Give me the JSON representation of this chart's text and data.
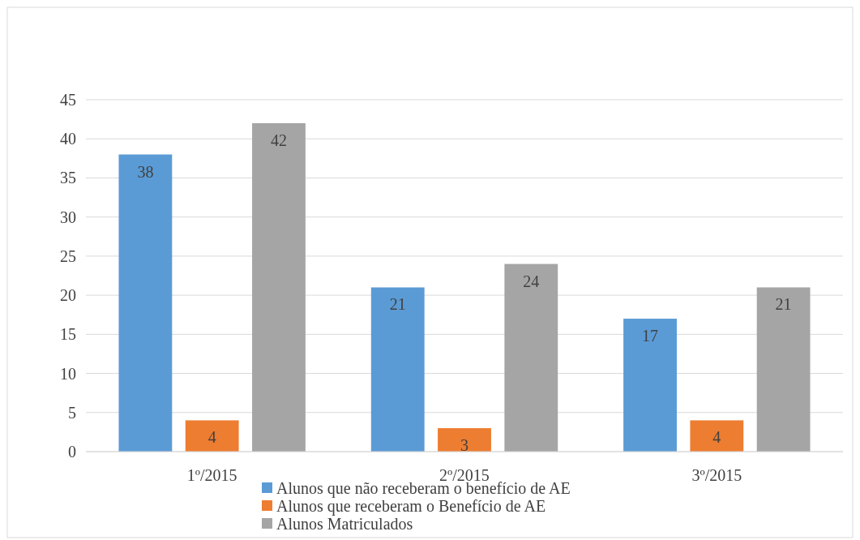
{
  "chart_data": {
    "type": "bar",
    "categories": [
      "1º/2015",
      "2º/2015",
      "3º/2015"
    ],
    "series": [
      {
        "name": "Alunos que não receberam o benefício de AE",
        "color": "#5b9bd5",
        "values": [
          38,
          21,
          17
        ]
      },
      {
        "name": "Alunos que receberam o Benefício de AE",
        "color": "#ed7d31",
        "values": [
          4,
          3,
          4
        ]
      },
      {
        "name": "Alunos Matriculados",
        "color": "#a5a5a5",
        "values": [
          42,
          24,
          21
        ]
      }
    ],
    "ylim": [
      0,
      45
    ],
    "yticks": [
      0,
      5,
      10,
      15,
      20,
      25,
      30,
      35,
      40,
      45
    ],
    "grid": "y",
    "legend": "bottom",
    "data_labels": true
  }
}
